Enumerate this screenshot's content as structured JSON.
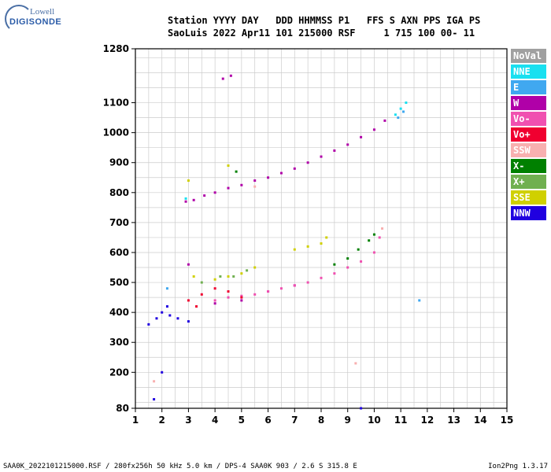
{
  "logo": {
    "top": "Lowell",
    "bottom": "DIGISONDE"
  },
  "header": {
    "line1": "Station YYYY DAY   DDD HHMMSS P1   FFS S AXN PPS IGA PS",
    "line2": "SaoLuis 2022 Apr11 101 215000 RSF     1 715 100 00- 11"
  },
  "footer": {
    "left": "SAA0K_2022101215000.RSF / 280fx256h 50 kHz 5.0 km / DPS-4 SAA0K 903 / 2.6 S 315.8 E",
    "right": "Ion2Png 1.3.17"
  },
  "legend": [
    {
      "label": "NoVal",
      "color": "#a0a0a0"
    },
    {
      "label": "NNE",
      "color": "#19e0f0"
    },
    {
      "label": "E",
      "color": "#40a8f0"
    },
    {
      "label": "W",
      "color": "#b000a8"
    },
    {
      "label": "Vo-",
      "color": "#f050b0"
    },
    {
      "label": "Vo+",
      "color": "#f00030"
    },
    {
      "label": "SSW",
      "color": "#f8b0b0"
    },
    {
      "label": "X-",
      "color": "#008000"
    },
    {
      "label": "X+",
      "color": "#70b050"
    },
    {
      "label": "SSE",
      "color": "#d0d000"
    },
    {
      "label": "NNW",
      "color": "#2000e0"
    }
  ],
  "chart_data": {
    "type": "scatter",
    "xlim": [
      1,
      15
    ],
    "ylim": [
      80,
      1280
    ],
    "x_ticks": [
      "1",
      "2",
      "3",
      "4",
      "5",
      "6",
      "7",
      "8",
      "9",
      "10",
      "11",
      "12",
      "13",
      "14",
      "15"
    ],
    "y_ticks": [
      {
        "v": 80,
        "label": "80"
      },
      {
        "v": 200,
        "label": "200"
      },
      {
        "v": 300,
        "label": "300"
      },
      {
        "v": 400,
        "label": "400"
      },
      {
        "v": 500,
        "label": "500"
      },
      {
        "v": 600,
        "label": "600"
      },
      {
        "v": 700,
        "label": "700"
      },
      {
        "v": 800,
        "label": "800"
      },
      {
        "v": 900,
        "label": "900"
      },
      {
        "v": 1000,
        "label": "1000"
      },
      {
        "v": 1100,
        "label": "1100"
      },
      {
        "v": 1280,
        "label": "1280"
      }
    ],
    "grid": true,
    "series": [
      {
        "name": "W",
        "color": "#b000a8",
        "points": [
          [
            2.9,
            770
          ],
          [
            3.2,
            775
          ],
          [
            3.6,
            790
          ],
          [
            4.0,
            800
          ],
          [
            4.5,
            815
          ],
          [
            5.0,
            825
          ],
          [
            5.5,
            840
          ],
          [
            6.0,
            850
          ],
          [
            6.5,
            865
          ],
          [
            7.0,
            880
          ],
          [
            7.5,
            900
          ],
          [
            8.0,
            920
          ],
          [
            8.5,
            940
          ],
          [
            9.0,
            960
          ],
          [
            9.5,
            985
          ],
          [
            10.0,
            1010
          ],
          [
            10.4,
            1040
          ],
          [
            3.0,
            560
          ],
          [
            4.0,
            430
          ],
          [
            5.0,
            440
          ],
          [
            6.0,
            470
          ],
          [
            7.0,
            490
          ],
          [
            4.3,
            1180
          ],
          [
            4.6,
            1190
          ]
        ]
      },
      {
        "name": "NNE",
        "color": "#19e0f0",
        "points": [
          [
            10.8,
            1060
          ],
          [
            11.0,
            1080
          ],
          [
            11.2,
            1100
          ],
          [
            2.9,
            780
          ]
        ]
      },
      {
        "name": "E",
        "color": "#40a8f0",
        "points": [
          [
            10.9,
            1050
          ],
          [
            11.1,
            1070
          ],
          [
            2.2,
            480
          ],
          [
            11.7,
            440
          ]
        ]
      },
      {
        "name": "Vo-",
        "color": "#f050b0",
        "points": [
          [
            5.5,
            460
          ],
          [
            6.0,
            470
          ],
          [
            6.5,
            480
          ],
          [
            7.0,
            490
          ],
          [
            7.5,
            500
          ],
          [
            8.0,
            515
          ],
          [
            8.5,
            530
          ],
          [
            9.0,
            550
          ],
          [
            9.5,
            570
          ],
          [
            10.0,
            600
          ],
          [
            10.2,
            650
          ],
          [
            4.0,
            440
          ],
          [
            4.5,
            450
          ],
          [
            5.0,
            455
          ]
        ]
      },
      {
        "name": "Vo+",
        "color": "#f00030",
        "points": [
          [
            3.0,
            440
          ],
          [
            3.5,
            460
          ],
          [
            4.0,
            480
          ],
          [
            4.5,
            470
          ],
          [
            5.0,
            450
          ],
          [
            3.3,
            420
          ]
        ]
      },
      {
        "name": "SSW",
        "color": "#f8b0b0",
        "points": [
          [
            10.3,
            680
          ],
          [
            9.3,
            230
          ],
          [
            1.7,
            170
          ],
          [
            5.5,
            820
          ]
        ]
      },
      {
        "name": "X-",
        "color": "#008000",
        "points": [
          [
            8.5,
            560
          ],
          [
            9.0,
            580
          ],
          [
            9.4,
            610
          ],
          [
            9.8,
            640
          ],
          [
            10.0,
            660
          ],
          [
            4.8,
            870
          ]
        ]
      },
      {
        "name": "X+",
        "color": "#70b050",
        "points": [
          [
            4.2,
            520
          ],
          [
            4.7,
            520
          ],
          [
            5.2,
            540
          ],
          [
            3.5,
            500
          ]
        ]
      },
      {
        "name": "SSE",
        "color": "#d0d000",
        "points": [
          [
            7.0,
            610
          ],
          [
            7.5,
            620
          ],
          [
            8.0,
            630
          ],
          [
            8.2,
            650
          ],
          [
            4.0,
            510
          ],
          [
            4.5,
            520
          ],
          [
            5.0,
            530
          ],
          [
            5.5,
            550
          ],
          [
            3.2,
            520
          ],
          [
            3.0,
            840
          ],
          [
            4.5,
            890
          ]
        ]
      },
      {
        "name": "NNW",
        "color": "#2000e0",
        "points": [
          [
            1.5,
            360
          ],
          [
            1.8,
            380
          ],
          [
            2.0,
            400
          ],
          [
            2.3,
            390
          ],
          [
            2.6,
            380
          ],
          [
            3.0,
            370
          ],
          [
            2.2,
            420
          ],
          [
            1.7,
            110
          ],
          [
            2.0,
            200
          ],
          [
            9.5,
            80
          ]
        ]
      }
    ]
  }
}
